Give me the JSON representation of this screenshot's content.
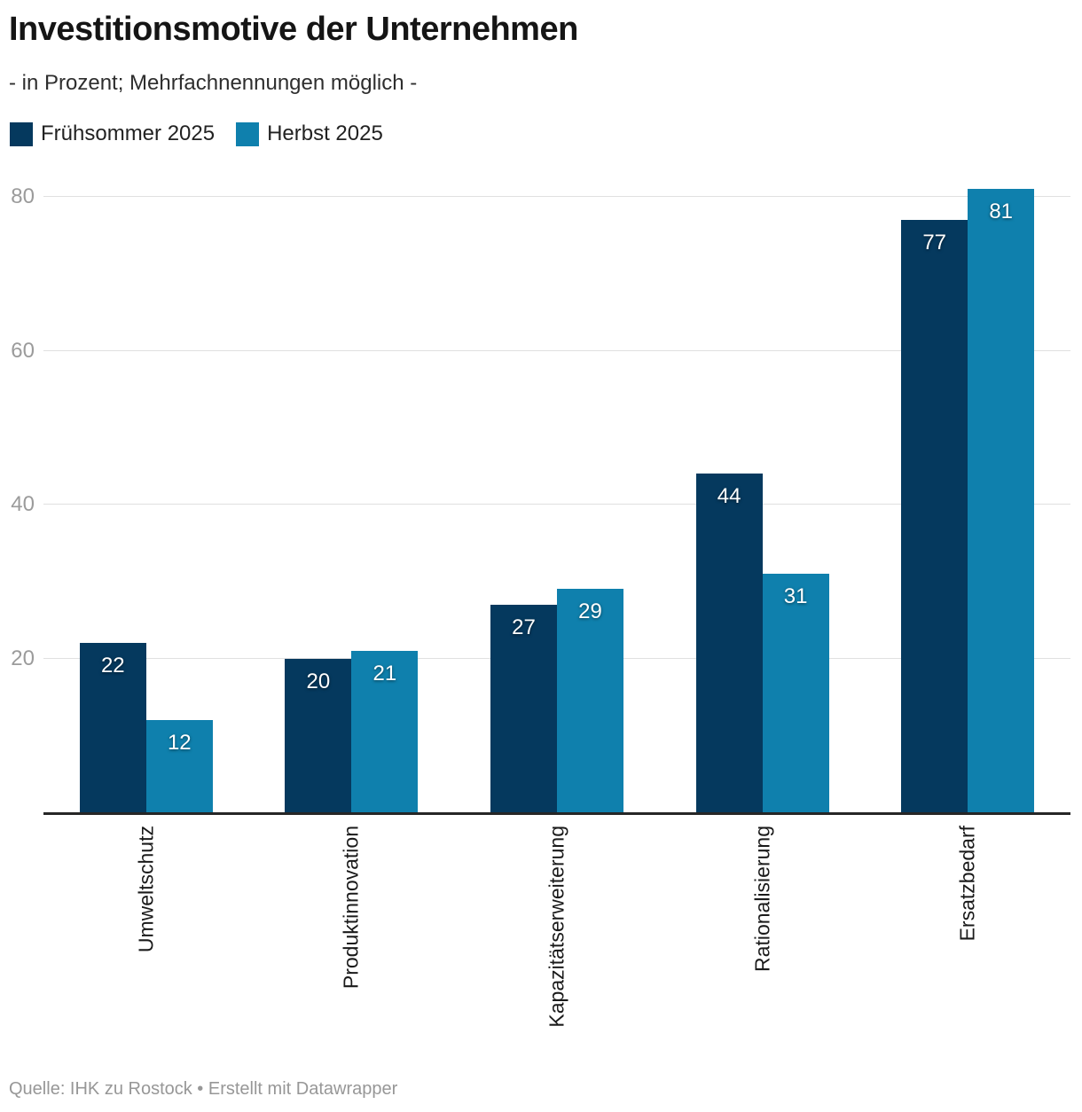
{
  "header": {
    "title": "Investitionsmotive der Unternehmen",
    "subtitle": "- in Prozent; Mehrfachnennungen möglich -"
  },
  "footer": {
    "source_line": "Quelle: IHK zu Rostock • Erstellt mit Datawrapper"
  },
  "colors": {
    "series_dark": "#05395e",
    "series_light": "#0f80ad",
    "gridline": "#e0e0e0",
    "axis_line": "#262626",
    "tick_label": "#9b9b9b",
    "value_label": "#ffffff"
  },
  "chart_data": {
    "type": "bar",
    "title": "Investitionsmotive der Unternehmen",
    "subtitle": "- in Prozent; Mehrfachnennungen möglich -",
    "categories": [
      "Umweltschutz",
      "Produktinnovation",
      "Kapazitätserweiterung",
      "Rationalisierung",
      "Ersatzbedarf"
    ],
    "series": [
      {
        "name": "Frühsommer 2025",
        "color": "#05395e",
        "values": [
          22,
          20,
          27,
          44,
          77
        ]
      },
      {
        "name": "Herbst 2025",
        "color": "#0f80ad",
        "values": [
          12,
          21,
          29,
          31,
          81
        ]
      }
    ],
    "value_labels_shown": true,
    "xlabel": "",
    "ylabel": "",
    "y_ticks": [
      20,
      40,
      60,
      80
    ],
    "ylim": [
      0,
      85
    ],
    "grid": "horizontal",
    "legend_position": "top-left",
    "x_label_rotation": "vertical-bottom-to-top",
    "footer": "Quelle: IHK zu Rostock • Erstellt mit Datawrapper"
  }
}
